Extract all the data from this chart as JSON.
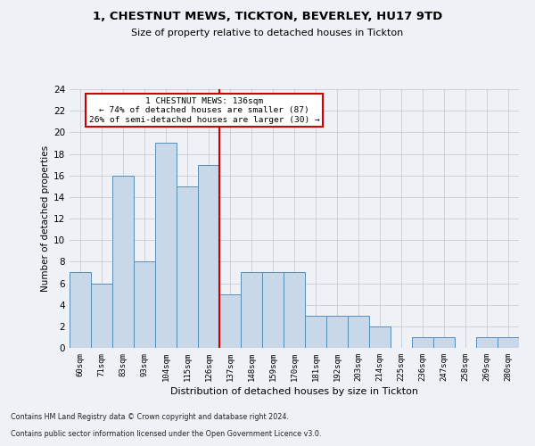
{
  "title_line1": "1, CHESTNUT MEWS, TICKTON, BEVERLEY, HU17 9TD",
  "title_line2": "Size of property relative to detached houses in Tickton",
  "xlabel": "Distribution of detached houses by size in Tickton",
  "ylabel": "Number of detached properties",
  "categories": [
    "60sqm",
    "71sqm",
    "83sqm",
    "93sqm",
    "104sqm",
    "115sqm",
    "126sqm",
    "137sqm",
    "148sqm",
    "159sqm",
    "170sqm",
    "181sqm",
    "192sqm",
    "203sqm",
    "214sqm",
    "225sqm",
    "236sqm",
    "247sqm",
    "258sqm",
    "269sqm",
    "280sqm"
  ],
  "values": [
    7,
    6,
    16,
    8,
    19,
    15,
    17,
    5,
    7,
    7,
    7,
    3,
    3,
    3,
    2,
    0,
    1,
    1,
    0,
    1,
    1
  ],
  "bar_color": "#c8d8e8",
  "bar_edge_color": "#5b8db8",
  "vline_x": 6.5,
  "annotation_line1": "1 CHESTNUT MEWS: 136sqm",
  "annotation_line2": "← 74% of detached houses are smaller (87)",
  "annotation_line3": "26% of semi-detached houses are larger (30) →",
  "annotation_box_color": "#ffffff",
  "annotation_box_edge_color": "#cc0000",
  "vline_color": "#cc0000",
  "grid_color": "#cccccc",
  "ylim": [
    0,
    24
  ],
  "yticks": [
    0,
    2,
    4,
    6,
    8,
    10,
    12,
    14,
    16,
    18,
    20,
    22,
    24
  ],
  "footer_line1": "Contains HM Land Registry data © Crown copyright and database right 2024.",
  "footer_line2": "Contains public sector information licensed under the Open Government Licence v3.0.",
  "background_color": "#eef2f7"
}
